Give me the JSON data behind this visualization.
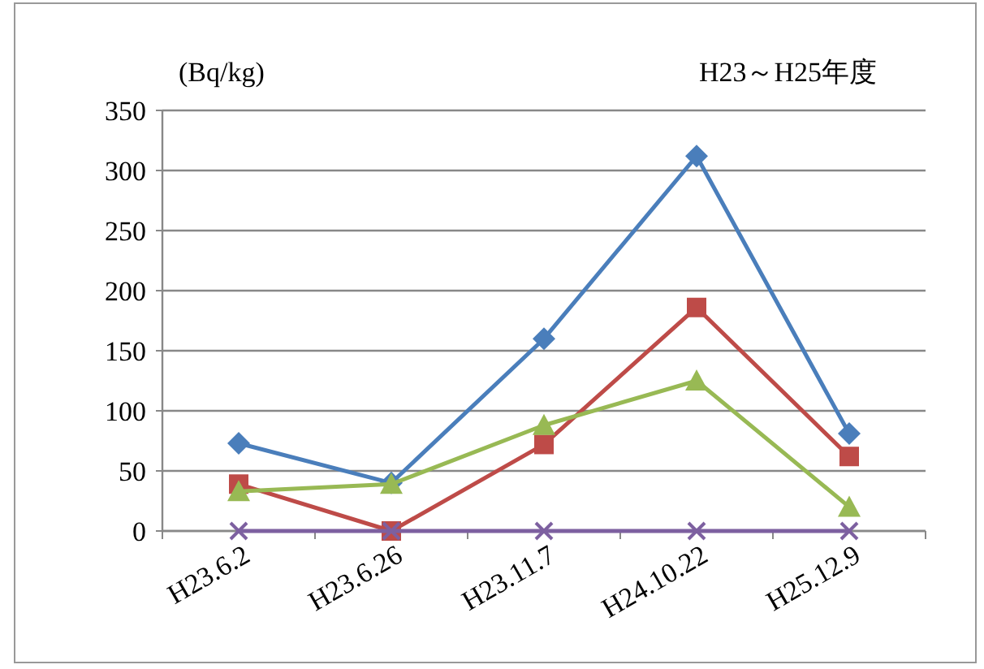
{
  "chart_data": {
    "type": "line",
    "title": "H23～H25年度",
    "ylabel": "(Bq/kg)",
    "categories": [
      "H23.6.2",
      "H23.6.26",
      "H23.11.7",
      "H24.10.22",
      "H25.12.9"
    ],
    "series": [
      {
        "color": "#4a7ebb",
        "marker": "diamond",
        "values": [
          73,
          40,
          160,
          312,
          81
        ]
      },
      {
        "color": "#be4b48",
        "marker": "square",
        "values": [
          39,
          0,
          72,
          186,
          62
        ]
      },
      {
        "color": "#98b954",
        "marker": "triangle",
        "values": [
          33,
          39,
          88,
          125,
          20
        ]
      },
      {
        "color": "#7d60a0",
        "marker": "cross",
        "values": [
          0,
          0,
          0,
          0,
          0
        ]
      }
    ],
    "ylim": [
      0,
      350
    ],
    "yticks": [
      0,
      50,
      100,
      150,
      200,
      250,
      300,
      350
    ],
    "grid": "y",
    "line_style": "solid"
  }
}
